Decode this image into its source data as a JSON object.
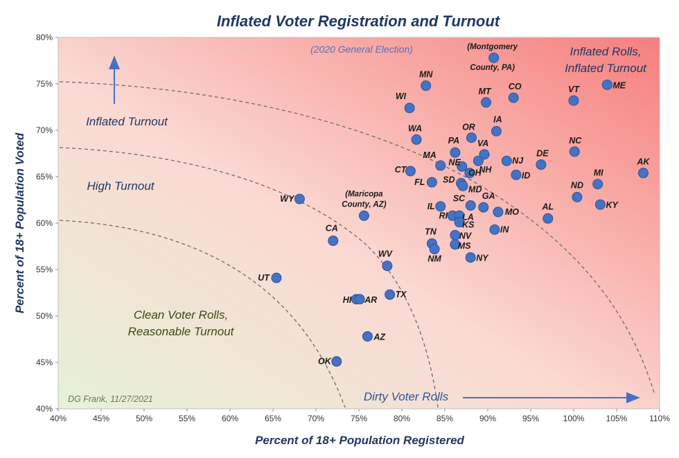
{
  "chart_data": {
    "type": "scatter",
    "title": "Inflated Voter Registration and Turnout",
    "subtitle": "(2020 General Election)",
    "xlabel": "Percent of 18+ Population  Registered",
    "ylabel": "Percent of 18+ Population Voted",
    "xlim": [
      40,
      110
    ],
    "ylim": [
      40,
      80
    ],
    "x_ticks": [
      "40%",
      "45%",
      "50%",
      "55%",
      "60%",
      "65%",
      "70%",
      "75%",
      "80%",
      "85%",
      "90%",
      "95%",
      "100%",
      "105%",
      "110%"
    ],
    "y_ticks": [
      "40%",
      "45%",
      "50%",
      "55%",
      "60%",
      "65%",
      "70%",
      "75%",
      "80%"
    ],
    "grid": false,
    "credit": "DG Frank, 11/27/2021",
    "points": [
      {
        "label": "MN",
        "x": 82.8,
        "y": 74.8
      },
      {
        "label": "WI",
        "x": 80.9,
        "y": 72.4
      },
      {
        "label": "MT",
        "x": 89.8,
        "y": 73.0
      },
      {
        "label": "CO",
        "x": 93.0,
        "y": 73.5
      },
      {
        "label": "VT",
        "x": 100.0,
        "y": 73.2
      },
      {
        "label": "ME",
        "x": 103.9,
        "y": 74.9
      },
      {
        "label": "(Montgomery County, PA)",
        "x": 90.7,
        "y": 77.8
      },
      {
        "label": "WA",
        "x": 81.7,
        "y": 69.0
      },
      {
        "label": "OR",
        "x": 88.1,
        "y": 69.2
      },
      {
        "label": "IA",
        "x": 91.0,
        "y": 69.9
      },
      {
        "label": "PA",
        "x": 86.2,
        "y": 67.6
      },
      {
        "label": "VA",
        "x": 89.6,
        "y": 67.4
      },
      {
        "label": "MA",
        "x": 84.5,
        "y": 66.2
      },
      {
        "label": "NE",
        "x": 87.0,
        "y": 66.1
      },
      {
        "label": "NH",
        "x": 88.9,
        "y": 66.7
      },
      {
        "label": "NJ",
        "x": 92.2,
        "y": 66.7
      },
      {
        "label": "DE",
        "x": 96.2,
        "y": 66.3
      },
      {
        "label": "NC",
        "x": 100.1,
        "y": 67.7
      },
      {
        "label": "AK",
        "x": 108.1,
        "y": 65.4
      },
      {
        "label": "CT",
        "x": 81.0,
        "y": 65.6
      },
      {
        "label": "OH",
        "x": 87.9,
        "y": 65.4
      },
      {
        "label": "ID",
        "x": 93.3,
        "y": 65.2
      },
      {
        "label": "FL",
        "x": 83.5,
        "y": 64.4
      },
      {
        "label": "SD",
        "x": 86.9,
        "y": 64.3
      },
      {
        "label": "MD",
        "x": 87.1,
        "y": 64.0
      },
      {
        "label": "MI",
        "x": 102.8,
        "y": 64.2
      },
      {
        "label": "WY",
        "x": 68.1,
        "y": 62.6
      },
      {
        "label": "(Maricopa County, AZ)",
        "x": 75.6,
        "y": 60.8
      },
      {
        "label": "SC",
        "x": 88.0,
        "y": 61.9
      },
      {
        "label": "GA",
        "x": 89.5,
        "y": 61.7
      },
      {
        "label": "IL",
        "x": 84.5,
        "y": 61.8
      },
      {
        "label": "ND",
        "x": 100.4,
        "y": 62.8
      },
      {
        "label": "KY",
        "x": 103.1,
        "y": 62.0
      },
      {
        "label": "MO",
        "x": 91.2,
        "y": 61.2
      },
      {
        "label": "AL",
        "x": 97.0,
        "y": 60.5
      },
      {
        "label": "RI",
        "x": 85.9,
        "y": 60.8
      },
      {
        "label": "LA",
        "x": 86.7,
        "y": 60.8
      },
      {
        "label": "KS",
        "x": 86.7,
        "y": 60.1
      },
      {
        "label": "IN",
        "x": 90.8,
        "y": 59.3
      },
      {
        "label": "CA",
        "x": 72.0,
        "y": 58.1
      },
      {
        "label": "TN",
        "x": 83.5,
        "y": 57.8
      },
      {
        "label": "NV",
        "x": 86.2,
        "y": 58.7
      },
      {
        "label": "NM",
        "x": 83.8,
        "y": 57.2
      },
      {
        "label": "MS",
        "x": 86.2,
        "y": 57.7
      },
      {
        "label": "NY",
        "x": 88.0,
        "y": 56.3
      },
      {
        "label": "WV",
        "x": 78.3,
        "y": 55.4
      },
      {
        "label": "UT",
        "x": 65.4,
        "y": 54.1
      },
      {
        "label": "TX",
        "x": 78.6,
        "y": 52.3
      },
      {
        "label": "HI",
        "x": 74.7,
        "y": 51.8
      },
      {
        "label": "AR",
        "x": 75.1,
        "y": 51.8
      },
      {
        "label": "AZ",
        "x": 76.0,
        "y": 47.8
      },
      {
        "label": "OK",
        "x": 72.4,
        "y": 45.1
      }
    ],
    "annotations": [
      {
        "text": "Inflated Rolls,",
        "color": "#1f3864"
      },
      {
        "text": "Inflated Turnout",
        "color": "#1f3864"
      },
      {
        "text": "Inflated Turnout",
        "color": "#1f3864"
      },
      {
        "text": "High Turnout",
        "color": "#1f3864"
      },
      {
        "text": "Clean Voter Rolls,",
        "color": "#3a4a12"
      },
      {
        "text": "Reasonable Turnout",
        "color": "#3a4a12"
      },
      {
        "text": "Dirty Voter Rolls",
        "color": "#2f5597"
      }
    ],
    "colors": {
      "marker": "#4472c4",
      "bg_top_right": "#f57f7f",
      "bg_bottom_left": "#e5f2d6",
      "arrow": "#4472c4",
      "title": "#1f3864"
    }
  }
}
